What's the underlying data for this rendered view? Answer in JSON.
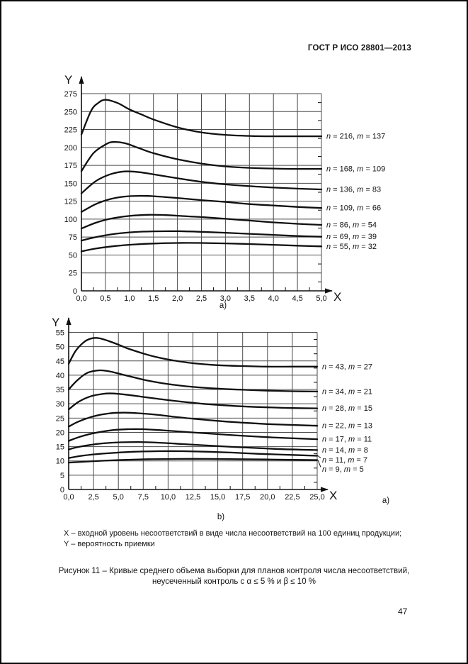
{
  "page": {
    "header": "ГОСТ Р ИСО 28801—2013",
    "page_number": "47"
  },
  "notes": [
    "X – входной уровень несоответствий в виде числа несоответствий на 100 единиц продукции;",
    "Y – вероятность приемки"
  ],
  "caption": {
    "line1": "Рисунок 11 – Кривые среднего объема выборки для планов контроля числа несоответствий,",
    "line2": "неусеченный контроль с α ≤ 5 % и β ≤ 10 %"
  },
  "chart_data": [
    {
      "id": "a",
      "type": "line",
      "sublabel": "а)",
      "xlabel": "X",
      "ylabel": "Y",
      "xlim": [
        0,
        5
      ],
      "ylim": [
        0,
        275
      ],
      "xticks": [
        "0,0",
        "0,5",
        "1,0",
        "1,5",
        "2,0",
        "2,5",
        "3,0",
        "3,5",
        "4,0",
        "4,5",
        "5,0"
      ],
      "yticks": [
        "0",
        "25",
        "50",
        "75",
        "100",
        "125",
        "150",
        "175",
        "200",
        "225",
        "250",
        "275"
      ],
      "grid": true,
      "legend_position": "right of curve ends",
      "series": [
        {
          "label": "n = 216, m = 137",
          "n": 216,
          "m": 137,
          "points": [
            [
              0,
              218
            ],
            [
              0.2,
              251
            ],
            [
              0.35,
              262
            ],
            [
              0.5,
              266.5
            ],
            [
              0.75,
              262
            ],
            [
              1,
              253
            ],
            [
              1.25,
              246
            ],
            [
              1.5,
              239
            ],
            [
              2,
              228
            ],
            [
              2.5,
              221
            ],
            [
              3,
              217.5
            ],
            [
              3.5,
              216
            ],
            [
              4,
              215.5
            ],
            [
              4.5,
              215.5
            ],
            [
              5,
              215.5
            ]
          ]
        },
        {
          "label": "n = 168, m = 109",
          "n": 168,
          "m": 109,
          "points": [
            [
              0,
              167
            ],
            [
              0.25,
              192
            ],
            [
              0.5,
              204
            ],
            [
              0.65,
              207.5
            ],
            [
              0.9,
              206
            ],
            [
              1.2,
              199
            ],
            [
              1.5,
              192
            ],
            [
              2,
              183.5
            ],
            [
              2.5,
              177.5
            ],
            [
              3,
              173.5
            ],
            [
              3.5,
              171.5
            ],
            [
              4,
              170.5
            ],
            [
              4.5,
              170
            ],
            [
              5,
              170
            ]
          ]
        },
        {
          "label": "n = 136, m = 83",
          "n": 136,
          "m": 83,
          "points": [
            [
              0,
              136
            ],
            [
              0.3,
              153
            ],
            [
              0.6,
              162.5
            ],
            [
              0.9,
              166.5
            ],
            [
              1.2,
              165.5
            ],
            [
              1.5,
              162.5
            ],
            [
              2,
              157
            ],
            [
              2.5,
              152
            ],
            [
              3,
              148.5
            ],
            [
              3.5,
              146
            ],
            [
              4,
              144
            ],
            [
              4.5,
              142.5
            ],
            [
              5,
              141.5
            ]
          ]
        },
        {
          "label": "n = 109, m = 66",
          "n": 109,
          "m": 66,
          "points": [
            [
              0,
              110
            ],
            [
              0.3,
              121
            ],
            [
              0.6,
              128
            ],
            [
              0.9,
              131.5
            ],
            [
              1.2,
              132.5
            ],
            [
              1.5,
              132
            ],
            [
              2,
              129.5
            ],
            [
              2.5,
              126.5
            ],
            [
              3,
              124
            ],
            [
              3.5,
              121
            ],
            [
              4,
              119
            ],
            [
              4.5,
              117
            ],
            [
              5,
              115.5
            ]
          ]
        },
        {
          "label": "n = 86, m = 54",
          "n": 86,
          "m": 54,
          "points": [
            [
              0,
              87
            ],
            [
              0.3,
              95
            ],
            [
              0.6,
              100.5
            ],
            [
              1,
              104.5
            ],
            [
              1.4,
              106
            ],
            [
              1.8,
              105.5
            ],
            [
              2.2,
              104
            ],
            [
              2.6,
              102.5
            ],
            [
              3,
              100.5
            ],
            [
              3.5,
              98
            ],
            [
              4,
              95.5
            ],
            [
              4.5,
              93.5
            ],
            [
              5,
              92
            ]
          ]
        },
        {
          "label": "n = 69, m = 39",
          "n": 69,
          "m": 39,
          "points": [
            [
              0,
              70
            ],
            [
              0.3,
              75
            ],
            [
              0.7,
              79.5
            ],
            [
              1.1,
              82
            ],
            [
              1.5,
              83
            ],
            [
              2,
              83.2
            ],
            [
              2.5,
              82.3
            ],
            [
              3,
              81
            ],
            [
              3.5,
              79.5
            ],
            [
              4,
              78
            ],
            [
              4.5,
              76.5
            ],
            [
              5,
              75.5
            ]
          ]
        },
        {
          "label": "n = 55, m = 32",
          "n": 55,
          "m": 32,
          "points": [
            [
              0,
              55
            ],
            [
              0.3,
              59
            ],
            [
              0.7,
              62.5
            ],
            [
              1.1,
              64.7
            ],
            [
              1.5,
              66
            ],
            [
              2,
              66.8
            ],
            [
              2.5,
              66.8
            ],
            [
              3,
              66.2
            ],
            [
              3.5,
              65.3
            ],
            [
              4,
              64.2
            ],
            [
              4.5,
              63
            ],
            [
              5,
              62
            ]
          ]
        }
      ]
    },
    {
      "id": "b",
      "type": "line",
      "sublabel": "b)",
      "side_sublabel": "а)",
      "xlabel": "X",
      "ylabel": "Y",
      "xlim": [
        0,
        25
      ],
      "ylim": [
        0,
        55
      ],
      "xticks": [
        "0,0",
        "2,5",
        "5,0",
        "7,5",
        "10,0",
        "12,5",
        "15,0",
        "17,5",
        "20,0",
        "22,5",
        "25,0"
      ],
      "yticks": [
        "0",
        "5",
        "10",
        "15",
        "20",
        "25",
        "30",
        "35",
        "40",
        "45",
        "50",
        "55"
      ],
      "grid": true,
      "legend_position": "right of curve ends",
      "series": [
        {
          "label": "n = 43, m = 27",
          "n": 43,
          "m": 27,
          "points": [
            [
              0,
              44
            ],
            [
              0.7,
              48.5
            ],
            [
              1.5,
              51.5
            ],
            [
              2.2,
              52.8
            ],
            [
              3,
              53
            ],
            [
              4,
              52
            ],
            [
              5,
              50.7
            ],
            [
              6,
              49.3
            ],
            [
              7.5,
              47.6
            ],
            [
              9,
              46.2
            ],
            [
              10.5,
              45.2
            ],
            [
              12.5,
              44.2
            ],
            [
              15,
              43.5
            ],
            [
              17.5,
              43.2
            ],
            [
              20,
              43
            ],
            [
              22.5,
              43
            ],
            [
              25,
              43
            ]
          ]
        },
        {
          "label": "n = 34, m = 21",
          "n": 34,
          "m": 21,
          "points": [
            [
              0,
              35
            ],
            [
              0.8,
              38
            ],
            [
              1.8,
              40.7
            ],
            [
              3,
              41.7
            ],
            [
              4,
              41.4
            ],
            [
              5,
              40.6
            ],
            [
              6.5,
              39.3
            ],
            [
              8,
              38.1
            ],
            [
              10,
              36.9
            ],
            [
              12.5,
              35.9
            ],
            [
              15,
              35.3
            ],
            [
              17.5,
              34.9
            ],
            [
              20,
              34.6
            ],
            [
              22.5,
              34.4
            ],
            [
              25,
              34.3
            ]
          ]
        },
        {
          "label": "n = 28, m = 15",
          "n": 28,
          "m": 15,
          "points": [
            [
              0,
              28
            ],
            [
              1,
              30.7
            ],
            [
              2.2,
              32.6
            ],
            [
              3.5,
              33.5
            ],
            [
              4.5,
              33.6
            ],
            [
              6,
              33.1
            ],
            [
              7.5,
              32.4
            ],
            [
              9.5,
              31.5
            ],
            [
              11.5,
              30.7
            ],
            [
              13.5,
              30
            ],
            [
              15.5,
              29.5
            ],
            [
              18,
              29
            ],
            [
              20.5,
              28.7
            ],
            [
              22.5,
              28.5
            ],
            [
              25,
              28.4
            ]
          ]
        },
        {
          "label": "n = 22, m = 13",
          "n": 22,
          "m": 13,
          "points": [
            [
              0,
              22
            ],
            [
              1,
              23.8
            ],
            [
              2.5,
              25.6
            ],
            [
              4,
              26.6
            ],
            [
              5.5,
              26.9
            ],
            [
              7,
              26.7
            ],
            [
              9,
              26.1
            ],
            [
              11,
              25.3
            ],
            [
              13,
              24.6
            ],
            [
              15,
              24
            ],
            [
              17.5,
              23.4
            ],
            [
              20,
              22.9
            ],
            [
              22.5,
              22.6
            ],
            [
              25,
              22.3
            ]
          ]
        },
        {
          "label": "n = 17, m = 11",
          "n": 17,
          "m": 11,
          "points": [
            [
              0,
              17
            ],
            [
              1,
              18.3
            ],
            [
              2.5,
              19.7
            ],
            [
              4.5,
              20.8
            ],
            [
              6,
              21.1
            ],
            [
              7.5,
              21.1
            ],
            [
              9.5,
              20.7
            ],
            [
              12,
              20.1
            ],
            [
              14.5,
              19.5
            ],
            [
              17,
              18.9
            ],
            [
              19.5,
              18.4
            ],
            [
              22,
              18
            ],
            [
              25,
              17.6
            ]
          ]
        },
        {
          "label": "n = 14, m = 8",
          "n": 14,
          "m": 8,
          "points": [
            [
              0,
              14
            ],
            [
              1,
              14.9
            ],
            [
              3,
              16
            ],
            [
              5,
              16.5
            ],
            [
              7,
              16.6
            ],
            [
              9,
              16.4
            ],
            [
              11.5,
              15.9
            ],
            [
              14,
              15.4
            ],
            [
              16.5,
              14.9
            ],
            [
              19,
              14.5
            ],
            [
              21.5,
              14.1
            ],
            [
              25,
              13.8
            ]
          ]
        },
        {
          "label": "n = 11, m = 7",
          "n": 11,
          "m": 7,
          "pointer": true,
          "label_value": 10.3,
          "points": [
            [
              0,
              11
            ],
            [
              1.5,
              11.9
            ],
            [
              4,
              12.7
            ],
            [
              6.5,
              13.2
            ],
            [
              9,
              13.4
            ],
            [
              11.5,
              13.4
            ],
            [
              14,
              13.2
            ],
            [
              16.5,
              12.9
            ],
            [
              19,
              12.5
            ],
            [
              21.5,
              12.2
            ],
            [
              25,
              11.8
            ]
          ]
        },
        {
          "label": "n = 9, m = 5",
          "n": 9,
          "m": 5,
          "pointer": true,
          "label_value": 7.1,
          "points": [
            [
              0,
              9.4
            ],
            [
              2,
              9.8
            ],
            [
              5,
              10.3
            ],
            [
              8,
              10.6
            ],
            [
              11,
              10.7
            ],
            [
              14,
              10.7
            ],
            [
              17,
              10.6
            ],
            [
              20,
              10.5
            ],
            [
              22.5,
              10.4
            ],
            [
              25,
              10.3
            ]
          ]
        }
      ]
    }
  ]
}
